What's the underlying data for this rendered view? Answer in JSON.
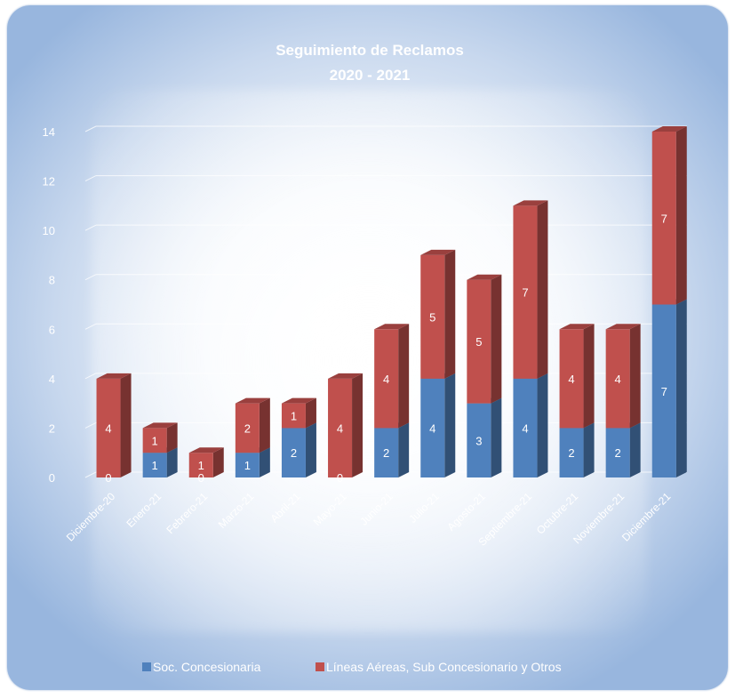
{
  "chart_data": {
    "type": "bar",
    "stacked": true,
    "title": "Seguimiento de Reclamos",
    "subtitle": "2020 - 2021",
    "categories": [
      "Diciembre-20",
      "Enero-21",
      "Febrero-21",
      "Marzo-21",
      "Abril-21",
      "Mayo-21",
      "Junio-21",
      "Julio-21",
      "Agosto-21",
      "Septiembre-21",
      "Octubre-21",
      "Noviembre-21",
      "Diciembre-21"
    ],
    "series": [
      {
        "name": "Soc. Concesionaria",
        "color": "#4f81bd",
        "values": [
          0,
          1,
          0,
          1,
          2,
          0,
          2,
          4,
          3,
          4,
          2,
          2,
          7
        ]
      },
      {
        "name": "Líneas Aéreas, Sub Concesionario y Otros",
        "color": "#c0504d",
        "values": [
          4,
          1,
          1,
          2,
          1,
          4,
          4,
          5,
          5,
          7,
          4,
          4,
          7
        ]
      }
    ],
    "yticks": [
      0,
      2,
      4,
      6,
      8,
      10,
      12,
      14
    ],
    "ylim": [
      0,
      14
    ],
    "grid": true,
    "legend_position": "bottom"
  }
}
